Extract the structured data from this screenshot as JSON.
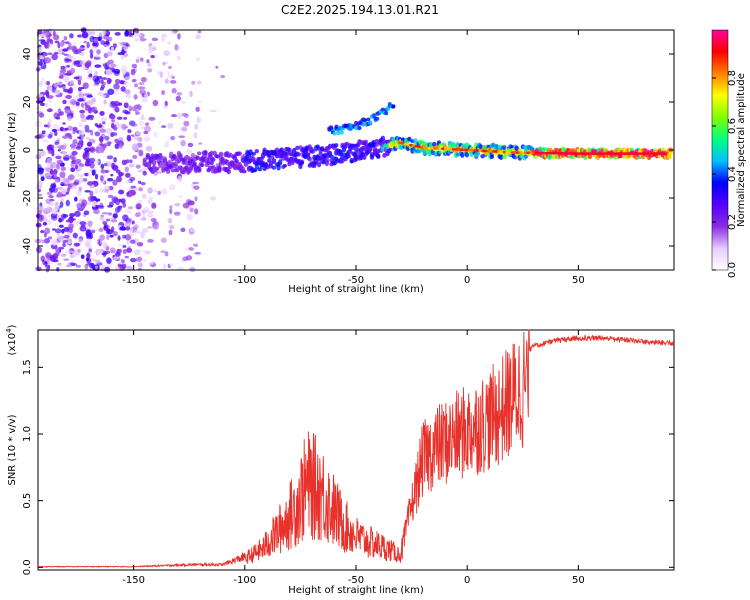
{
  "title": "C2E2.2025.194.13.01.R21",
  "chart_data": [
    {
      "type": "heatmap",
      "xlabel": "Height of straight line (km)",
      "ylabel": "Frequency (Hz)",
      "xlim": [
        -193,
        93
      ],
      "ylim": [
        -50,
        50
      ],
      "xticks": [
        -150,
        -100,
        -50,
        0,
        50
      ],
      "yticks": [
        -40,
        -20,
        0,
        20,
        40
      ],
      "colorbar": {
        "label": "Normalized spectral amplitude",
        "ticks": [
          0.0,
          0.2,
          0.4,
          0.6,
          0.8
        ],
        "range": [
          0,
          1
        ],
        "colors": [
          "#ffffff",
          "#e6ccff",
          "#8a2be2",
          "#5500ff",
          "#0000ff",
          "#00c0ff",
          "#00ff80",
          "#80ff00",
          "#ffff00",
          "#ff8000",
          "#ff0000",
          "#ff00a0"
        ]
      },
      "ridge": [
        {
          "x": -140,
          "y": -6
        },
        {
          "x": -120,
          "y": -5
        },
        {
          "x": -100,
          "y": -5
        },
        {
          "x": -80,
          "y": -3
        },
        {
          "x": -60,
          "y": -2
        },
        {
          "x": -40,
          "y": 1
        },
        {
          "x": -30,
          "y": 3
        },
        {
          "x": -20,
          "y": 1
        },
        {
          "x": 0,
          "y": 0
        },
        {
          "x": 20,
          "y": -1
        },
        {
          "x": 50,
          "y": -1.5
        },
        {
          "x": 90,
          "y": -1.5
        }
      ],
      "upper_branch": [
        {
          "x": -60,
          "y": 8
        },
        {
          "x": -50,
          "y": 10
        },
        {
          "x": -40,
          "y": 14
        },
        {
          "x": -33,
          "y": 19
        }
      ]
    },
    {
      "type": "line",
      "xlabel": "Height of straight line (km)",
      "ylabel": "SNR (10 * v/v)",
      "multiplier": "(x10",
      "multiplier_exp": "4",
      "multiplier_close": ")",
      "xlim": [
        -193,
        93
      ],
      "ylim": [
        -0.02,
        1.78
      ],
      "xticks": [
        -150,
        -100,
        -50,
        0,
        50
      ],
      "yticks": [
        0.0,
        0.5,
        1.0,
        1.5
      ],
      "yticklabels": [
        "0.0",
        "0.5",
        "1.0",
        "1.5"
      ],
      "color": "#e8312a",
      "series_envelope": [
        {
          "x": -193,
          "y": 0.005
        },
        {
          "x": -150,
          "y": 0.005
        },
        {
          "x": -125,
          "y": 0.02
        },
        {
          "x": -110,
          "y": 0.02
        },
        {
          "x": -100,
          "y": 0.08
        },
        {
          "x": -92,
          "y": 0.18
        },
        {
          "x": -85,
          "y": 0.35
        },
        {
          "x": -78,
          "y": 0.55
        },
        {
          "x": -72,
          "y": 0.8
        },
        {
          "x": -66,
          "y": 0.75
        },
        {
          "x": -60,
          "y": 0.55
        },
        {
          "x": -55,
          "y": 0.4
        },
        {
          "x": -50,
          "y": 0.3
        },
        {
          "x": -45,
          "y": 0.25
        },
        {
          "x": -38,
          "y": 0.2
        },
        {
          "x": -30,
          "y": 0.12
        },
        {
          "x": -25,
          "y": 0.55
        },
        {
          "x": -20,
          "y": 0.95
        },
        {
          "x": -15,
          "y": 1.05
        },
        {
          "x": -10,
          "y": 1.1
        },
        {
          "x": -5,
          "y": 1.15
        },
        {
          "x": 0,
          "y": 1.2
        },
        {
          "x": 5,
          "y": 1.25
        },
        {
          "x": 10,
          "y": 1.3
        },
        {
          "x": 15,
          "y": 1.38
        },
        {
          "x": 20,
          "y": 1.48
        },
        {
          "x": 25,
          "y": 1.6
        },
        {
          "x": 30,
          "y": 1.68
        },
        {
          "x": 40,
          "y": 1.72
        },
        {
          "x": 50,
          "y": 1.74
        },
        {
          "x": 60,
          "y": 1.74
        },
        {
          "x": 70,
          "y": 1.73
        },
        {
          "x": 80,
          "y": 1.71
        },
        {
          "x": 93,
          "y": 1.7
        }
      ]
    }
  ]
}
